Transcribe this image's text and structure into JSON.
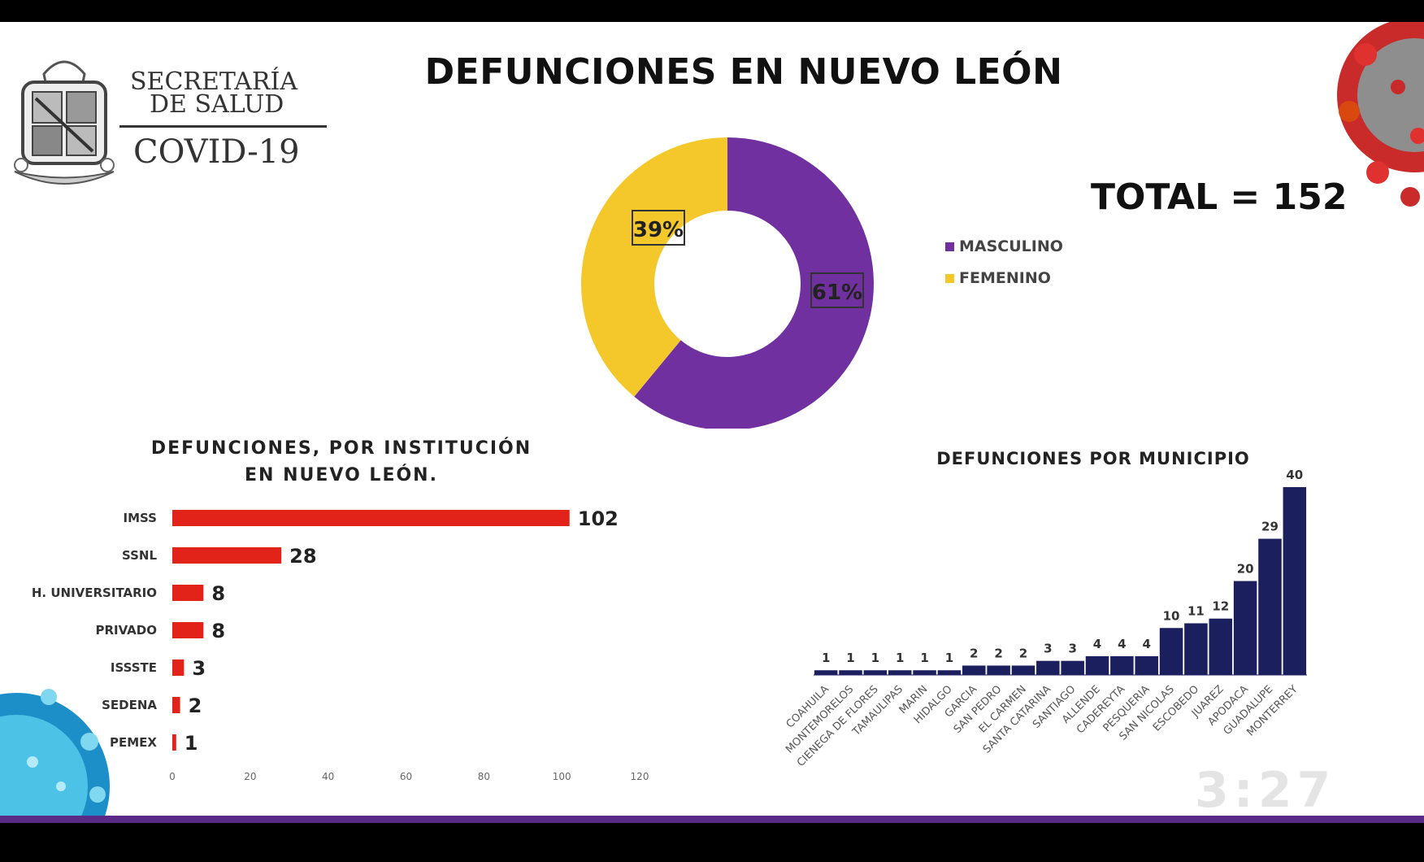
{
  "header": {
    "title": "DEFUNCIONES EN NUEVO LEÓN",
    "org_line1": "SECRETARÍA",
    "org_line2": "DE SALUD",
    "program": "COVID-19"
  },
  "total_label": "TOTAL = 152",
  "timer": "3:27",
  "colors": {
    "masculino": "#7030a0",
    "femenino": "#f4c82a",
    "institution_bar": "#e2231a",
    "municipio_bar": "#1c1f5e",
    "accent_bar": "#5b2a86"
  },
  "chart_data": [
    {
      "type": "pie",
      "variant": "donut",
      "labels": [
        "MASCULINO",
        "FEMENINO"
      ],
      "values": [
        61,
        39
      ],
      "value_labels": [
        "61%",
        "39%"
      ],
      "legend_placement": "right"
    },
    {
      "type": "bar",
      "orientation": "horizontal",
      "title": "DEFUNCIONES, POR INSTITUCIÓN EN NUEVO LEÓN.",
      "categories": [
        "IMSS",
        "SSNL",
        "H. UNIVERSITARIO",
        "PRIVADO",
        "ISSSTE",
        "SEDENA",
        "PEMEX"
      ],
      "values": [
        102,
        28,
        8,
        8,
        3,
        2,
        1
      ],
      "xlim": [
        0,
        120
      ],
      "xticks": [
        0,
        20,
        40,
        60,
        80,
        100,
        120
      ]
    },
    {
      "type": "bar",
      "orientation": "vertical",
      "title": "DEFUNCIONES POR MUNICIPIO",
      "categories": [
        "COAHUILA",
        "MONTEMORELOS",
        "CIENEGA DE FLORES",
        "TAMAULIPAS",
        "MARIN",
        "HIDALGO",
        "GARCIA",
        "SAN PEDRO",
        "EL CARMEN",
        "SANTA CATARINA",
        "SANTIAGO",
        "ALLENDE",
        "CADEREYTA",
        "PESQUERIA",
        "SAN NICOLAS",
        "ESCOBEDO",
        "JUAREZ",
        "APODACA",
        "GUADALUPE",
        "MONTERREY"
      ],
      "values": [
        1,
        1,
        1,
        1,
        1,
        1,
        2,
        2,
        2,
        3,
        3,
        4,
        4,
        4,
        10,
        11,
        12,
        20,
        29,
        40
      ]
    }
  ]
}
